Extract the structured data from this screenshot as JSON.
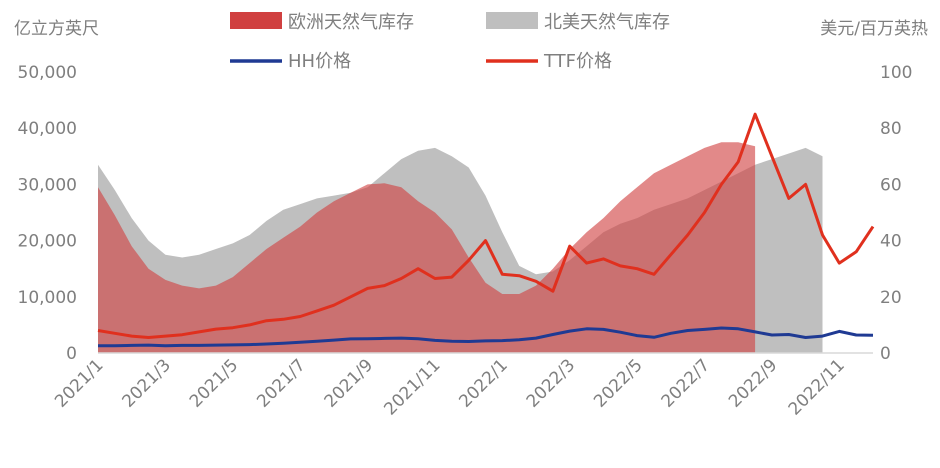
{
  "chart_data": {
    "type": "area",
    "left_axis_unit": "亿立方英尺",
    "right_axis_unit": "美元/百万英热",
    "y_left": {
      "min": 0,
      "max": 50000,
      "ticks": [
        0,
        10000,
        20000,
        30000,
        40000,
        50000
      ],
      "tick_labels": [
        "0",
        "10,000",
        "20,000",
        "30,000",
        "40,000",
        "50,000"
      ]
    },
    "y_right": {
      "min": 0,
      "max": 100,
      "ticks": [
        0,
        20,
        40,
        60,
        80,
        100
      ],
      "tick_labels": [
        "0",
        "20",
        "40",
        "60",
        "80",
        "100"
      ]
    },
    "x_axis": {
      "min": 0,
      "max": 23.0,
      "ticks": [
        0,
        2,
        4,
        6,
        8,
        10,
        12,
        14,
        16,
        18,
        20,
        22
      ],
      "tick_labels": [
        "2021/1",
        "2021/3",
        "2021/5",
        "2021/7",
        "2021/9",
        "2021/11",
        "2022/1",
        "2022/3",
        "2022/5",
        "2022/7",
        "2022/9",
        "2022/11"
      ]
    },
    "legend": {
      "placement": "top",
      "items": [
        "欧洲天然气库存",
        "北美天然气库存",
        "HH价格",
        "TTF价格"
      ]
    },
    "x": [
      0,
      0.5,
      1,
      1.5,
      2,
      2.5,
      3,
      3.5,
      4,
      4.5,
      5,
      5.5,
      6,
      6.5,
      7,
      7.5,
      8,
      8.5,
      9,
      9.5,
      10,
      10.5,
      11,
      11.5,
      12,
      12.5,
      13,
      13.5,
      14,
      14.5,
      15,
      15.5,
      16,
      16.5,
      17,
      17.5,
      18,
      18.5,
      19,
      19.5,
      20,
      20.5,
      21,
      21.5,
      22,
      22.5,
      23
    ],
    "series": [
      {
        "name": "北美天然气库存",
        "axis": "left",
        "kind": "area",
        "color": "#bfbfbf",
        "values": [
          33500,
          29000,
          24000,
          20000,
          17500,
          17000,
          17500,
          18500,
          19500,
          21000,
          23500,
          25500,
          26500,
          27500,
          28000,
          28500,
          29500,
          32000,
          34500,
          36000,
          36500,
          35000,
          33000,
          28000,
          21500,
          15500,
          14000,
          14500,
          16500,
          19000,
          21500,
          23000,
          24000,
          25500,
          26500,
          27500,
          29000,
          30500,
          32000,
          33500,
          34500,
          35500,
          36500,
          35000,
          null,
          null,
          null
        ]
      },
      {
        "name": "欧洲天然气库存",
        "axis": "left",
        "kind": "area",
        "color": "#d04040",
        "values": [
          29500,
          24500,
          19000,
          15000,
          13000,
          12000,
          11500,
          12000,
          13500,
          16000,
          18500,
          20500,
          22500,
          25000,
          27000,
          28500,
          30000,
          30200,
          29500,
          27000,
          25000,
          22000,
          17000,
          12500,
          10500,
          10500,
          12000,
          15000,
          18500,
          21500,
          24000,
          27000,
          29500,
          32000,
          33500,
          35000,
          36500,
          37500,
          37500,
          36800,
          null,
          null,
          null,
          null,
          null,
          null,
          null
        ]
      },
      {
        "name": "HH价格",
        "axis": "right",
        "kind": "line",
        "color": "#1f3a93",
        "values": [
          2.6,
          2.6,
          2.7,
          2.8,
          2.6,
          2.7,
          2.7,
          2.8,
          2.9,
          3.0,
          3.2,
          3.5,
          3.8,
          4.2,
          4.6,
          5.0,
          5.1,
          5.2,
          5.3,
          5.1,
          4.5,
          4.2,
          4.1,
          4.3,
          4.4,
          4.7,
          5.3,
          6.6,
          7.8,
          8.6,
          8.4,
          7.4,
          6.2,
          5.6,
          7.0,
          8.0,
          8.4,
          8.9,
          8.6,
          7.5,
          6.4,
          6.6,
          5.5,
          6.0,
          7.7,
          6.4,
          6.3
        ]
      },
      {
        "name": "TTF价格",
        "axis": "right",
        "kind": "line",
        "color": "#e0301e",
        "values": [
          8.0,
          7.0,
          6.0,
          5.5,
          6.0,
          6.5,
          7.5,
          8.5,
          9.0,
          10.0,
          11.5,
          12.0,
          13.0,
          15.0,
          17.0,
          20.0,
          23.0,
          24.0,
          26.5,
          30.0,
          26.5,
          27.0,
          33.0,
          40.0,
          28.0,
          27.5,
          25.5,
          22.0,
          38.0,
          32.0,
          33.5,
          31.0,
          30.0,
          28.0,
          35.0,
          42.0,
          50.0,
          60.0,
          68.0,
          85.0,
          70.0,
          55.0,
          60.0,
          42.0,
          32.0,
          36.0,
          45.0
        ]
      }
    ]
  }
}
